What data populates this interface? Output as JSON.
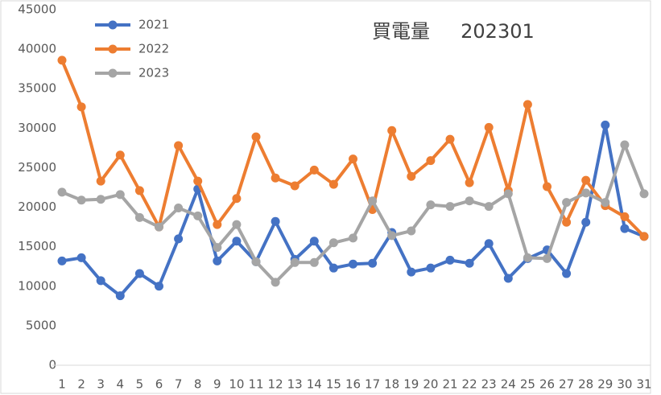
{
  "chart_data": {
    "type": "line",
    "title": "買電量     202301",
    "categories": [
      "1",
      "2",
      "3",
      "4",
      "5",
      "6",
      "7",
      "8",
      "9",
      "10",
      "11",
      "12",
      "13",
      "14",
      "15",
      "16",
      "17",
      "18",
      "19",
      "20",
      "21",
      "22",
      "23",
      "24",
      "25",
      "26",
      "27",
      "28",
      "29",
      "30",
      "31"
    ],
    "series": [
      {
        "name": "2021",
        "color": "#4472c4",
        "values": [
          13200,
          13600,
          10700,
          8800,
          11600,
          10000,
          16000,
          22300,
          13200,
          15700,
          13100,
          18200,
          13400,
          15700,
          12300,
          12800,
          12900,
          16800,
          11800,
          12300,
          13300,
          12900,
          15400,
          11000,
          13500,
          14600,
          11600,
          18100,
          30400,
          17300,
          16300
        ]
      },
      {
        "name": "2022",
        "color": "#ed7d31",
        "values": [
          38600,
          32700,
          23300,
          26600,
          22100,
          17500,
          27800,
          23300,
          17800,
          21100,
          28900,
          23700,
          22700,
          24700,
          22900,
          26100,
          19700,
          29700,
          23900,
          25900,
          28600,
          23100,
          30100,
          22100,
          33000,
          22600,
          18100,
          23400,
          20200,
          18800,
          16300
        ]
      },
      {
        "name": "2023",
        "color": "#a5a5a5",
        "values": [
          21900,
          20900,
          21000,
          21600,
          18700,
          17500,
          19900,
          18900,
          14900,
          17800,
          13100,
          10500,
          13000,
          13000,
          15500,
          16100,
          20800,
          16400,
          17000,
          20300,
          20100,
          20800,
          20100,
          21700,
          13600,
          13500,
          20600,
          21800,
          20600,
          27900,
          21700
        ]
      }
    ],
    "ylim": [
      0,
      45000
    ],
    "yticks": [
      0,
      5000,
      10000,
      15000,
      20000,
      25000,
      30000,
      35000,
      40000,
      45000
    ],
    "legend": "top-left"
  }
}
